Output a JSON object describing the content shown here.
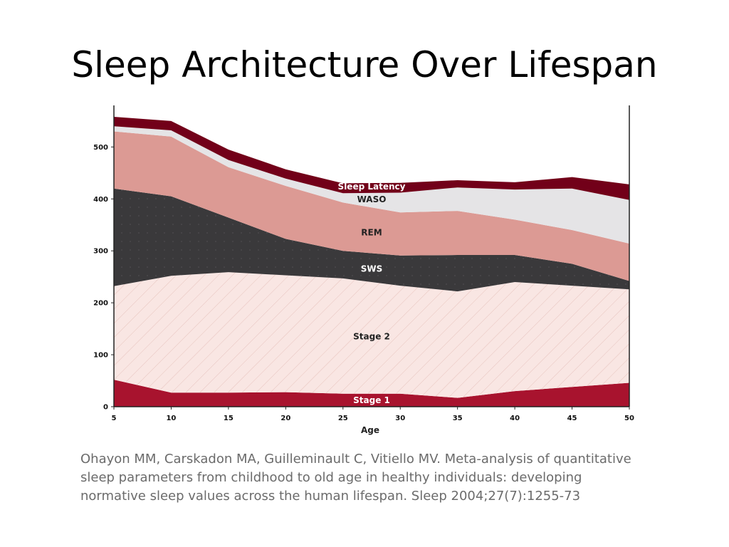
{
  "slide": {
    "title": "Sleep Architecture Over Lifespan",
    "citation_lines": [
      "Ohayon MM, Carskadon MA, Guilleminault C, Vitiello MV. Meta-analysis of quantitative",
      "sleep parameters from childhood to old age in healthy individuals: developing",
      "normative sleep values across the human lifespan. Sleep 2004;27(7):1255-73"
    ]
  },
  "chart_data": {
    "type": "area",
    "stacked": true,
    "title": "",
    "xlabel": "Age",
    "ylabel": "",
    "xlim": [
      5,
      50
    ],
    "ylim": [
      0,
      580
    ],
    "x_ticks": [
      "5",
      "10",
      "15",
      "20",
      "25",
      "30",
      "35",
      "40",
      "45",
      "50"
    ],
    "y_ticks": [
      "0",
      "100",
      "200",
      "300",
      "400",
      "500"
    ],
    "grid": false,
    "x": [
      5,
      10,
      15,
      20,
      25,
      30,
      35,
      40,
      45,
      50
    ],
    "series": [
      {
        "name": "Stage 1",
        "color": "#a8132e",
        "label_color": "#ffffff",
        "label_at": {
          "x": 27.5,
          "y": 12
        },
        "values": [
          52,
          27,
          27,
          28,
          25,
          25,
          17,
          30,
          38,
          46
        ]
      },
      {
        "name": "Stage 2",
        "color": "#f9e6e3",
        "label_color": "#222222",
        "label_at": {
          "x": 27.5,
          "y": 135
        },
        "values": [
          180,
          225,
          232,
          225,
          222,
          208,
          205,
          210,
          195,
          180
        ]
      },
      {
        "name": "SWS",
        "color": "#3a393b",
        "label_color": "#ffffff",
        "label_at": {
          "x": 27.5,
          "y": 265
        },
        "values": [
          188,
          153,
          105,
          70,
          53,
          58,
          70,
          52,
          42,
          16
        ]
      },
      {
        "name": "REM",
        "color": "#dc9a94",
        "label_color": "#222222",
        "label_at": {
          "x": 27.5,
          "y": 335
        },
        "values": [
          110,
          115,
          97,
          102,
          93,
          83,
          85,
          68,
          65,
          72
        ]
      },
      {
        "name": "WASO",
        "color": "#e5e4e6",
        "label_color": "#222222",
        "label_at": {
          "x": 27.5,
          "y": 399
        },
        "values": [
          10,
          12,
          14,
          14,
          18,
          38,
          45,
          58,
          80,
          84
        ]
      },
      {
        "name": "Sleep Latency",
        "color": "#720019",
        "label_color": "#ffffff",
        "label_at": {
          "x": 27.5,
          "y": 424
        },
        "values": [
          18,
          18,
          20,
          18,
          19,
          19,
          14,
          14,
          22,
          30
        ]
      }
    ]
  }
}
